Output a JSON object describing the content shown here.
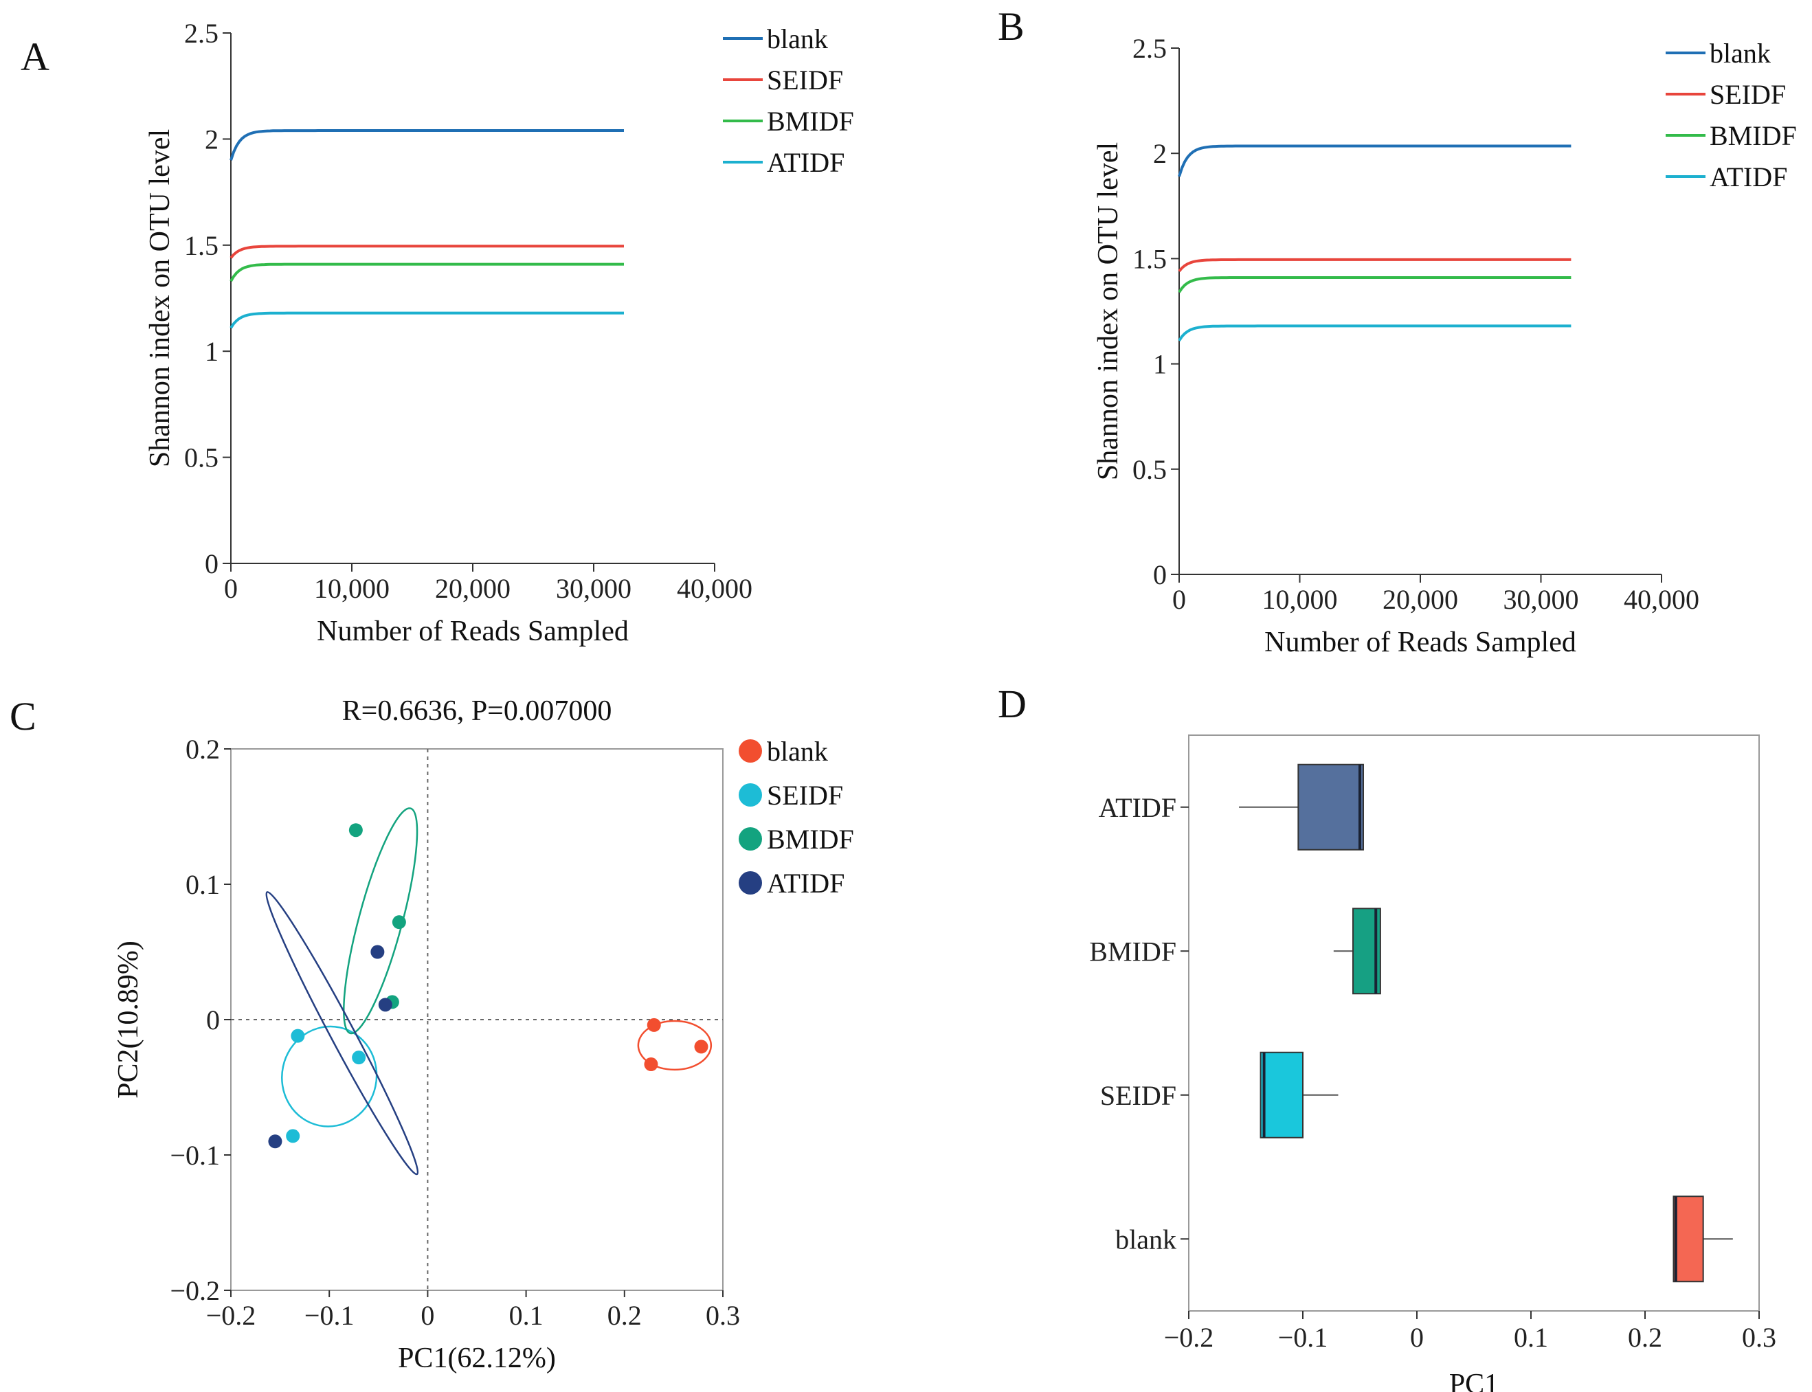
{
  "chart_data": [
    {
      "panel": "A",
      "type": "line",
      "title": "",
      "xlabel": "Number of Reads Sampled",
      "ylabel": "Shannon index on OTU level",
      "xlim": [
        0,
        40000
      ],
      "ylim": [
        0,
        2.5
      ],
      "xticks": [
        0,
        10000,
        20000,
        30000,
        40000
      ],
      "xtick_labels": [
        "0",
        "10,000",
        "20,000",
        "30,000",
        "40,000"
      ],
      "yticks": [
        0,
        0.5,
        1,
        1.5,
        2,
        2.5
      ],
      "ytick_labels": [
        "0",
        "0.5",
        "1",
        "1.5",
        "2",
        "2.5"
      ],
      "x_end": 32500,
      "legend": "top-right",
      "series": [
        {
          "name": "blank",
          "color": "#1f6fb4",
          "start": 1.9,
          "plateau": 2.04
        },
        {
          "name": "SEIDF",
          "color": "#e8453c",
          "start": 1.44,
          "plateau": 1.495
        },
        {
          "name": "BMIDF",
          "color": "#33bb4a",
          "start": 1.33,
          "plateau": 1.41
        },
        {
          "name": "ATIDF",
          "color": "#1cb0cf",
          "start": 1.11,
          "plateau": 1.18
        }
      ]
    },
    {
      "panel": "B",
      "type": "line",
      "title": "",
      "xlabel": "Number of Reads Sampled",
      "ylabel": "Shannon index on OTU level",
      "xlim": [
        0,
        40000
      ],
      "ylim": [
        0,
        2.5
      ],
      "xticks": [
        0,
        10000,
        20000,
        30000,
        40000
      ],
      "xtick_labels": [
        "0",
        "10,000",
        "20,000",
        "30,000",
        "40,000"
      ],
      "yticks": [
        0,
        0.5,
        1,
        1.5,
        2,
        2.5
      ],
      "ytick_labels": [
        "0",
        "0.5",
        "1",
        "1.5",
        "2",
        "2.5"
      ],
      "x_end": 32500,
      "legend": "top-right",
      "series": [
        {
          "name": "blank",
          "color": "#1f6fb4",
          "start": 1.89,
          "plateau": 2.035
        },
        {
          "name": "SEIDF",
          "color": "#e8453c",
          "start": 1.44,
          "plateau": 1.495
        },
        {
          "name": "BMIDF",
          "color": "#33bb4a",
          "start": 1.34,
          "plateau": 1.41
        },
        {
          "name": "ATIDF",
          "color": "#1cb0cf",
          "start": 1.11,
          "plateau": 1.18
        }
      ]
    },
    {
      "panel": "C",
      "type": "scatter",
      "title": "R=0.6636, P=0.007000",
      "xlabel": "PC1(62.12%)",
      "ylabel": "PC2(10.89%)",
      "xlim": [
        -0.2,
        0.3
      ],
      "ylim": [
        -0.2,
        0.2
      ],
      "xticks": [
        -0.2,
        -0.1,
        0,
        0.1,
        0.2,
        0.3
      ],
      "xtick_labels": [
        "−0.2",
        "−0.1",
        "0",
        "0.1",
        "0.2",
        "0.3"
      ],
      "yticks": [
        -0.2,
        -0.1,
        0,
        0.1,
        0.2
      ],
      "ytick_labels": [
        "−0.2",
        "−0.1",
        "0",
        "0.1",
        "0.2"
      ],
      "legend": "top-right",
      "series": [
        {
          "name": "blank",
          "color": "#f24e2f",
          "points": [
            [
              0.23,
              -0.004
            ],
            [
              0.278,
              -0.02
            ],
            [
              0.227,
              -0.033
            ]
          ],
          "ellipse": {
            "cx": 0.251,
            "cy": -0.019,
            "rx": 0.037,
            "ry": 0.018,
            "angle": 0
          }
        },
        {
          "name": "SEIDF",
          "color": "#1dbcd6",
          "points": [
            [
              -0.132,
              -0.012
            ],
            [
              -0.07,
              -0.028
            ],
            [
              -0.137,
              -0.086
            ]
          ],
          "ellipse": {
            "cx": -0.1,
            "cy": -0.042,
            "rx": 0.048,
            "ry": 0.037,
            "angle": 12
          }
        },
        {
          "name": "BMIDF",
          "color": "#13a37f",
          "points": [
            [
              -0.073,
              0.14
            ],
            [
              -0.029,
              0.072
            ],
            [
              -0.036,
              0.013
            ]
          ],
          "ellipse": {
            "cx": -0.048,
            "cy": 0.073,
            "rx": 0.022,
            "ry": 0.086,
            "angle": 15
          }
        },
        {
          "name": "ATIDF",
          "color": "#253f82",
          "points": [
            [
              -0.051,
              0.05
            ],
            [
              -0.043,
              0.011
            ],
            [
              -0.155,
              -0.09
            ]
          ],
          "ellipse": {
            "cx": -0.087,
            "cy": -0.01,
            "rx": 0.012,
            "ry": 0.118,
            "angle": -28
          }
        }
      ]
    },
    {
      "panel": "D",
      "type": "box",
      "title": "",
      "xlabel": "PC1",
      "ylabel": "",
      "xlim": [
        -0.2,
        0.3
      ],
      "xticks": [
        -0.2,
        -0.1,
        0,
        0.1,
        0.2,
        0.3
      ],
      "xtick_labels": [
        "−0.2",
        "−0.1",
        "0",
        "0.1",
        "0.2",
        "0.3"
      ],
      "categories": [
        "ATIDF",
        "BMIDF",
        "SEIDF",
        "blank"
      ],
      "boxes": [
        {
          "name": "ATIDF",
          "color": "#55709d",
          "whisker_low": -0.156,
          "q1": -0.104,
          "median": -0.05,
          "q3": -0.047,
          "whisker_high": -0.047
        },
        {
          "name": "BMIDF",
          "color": "#16a083",
          "whisker_low": -0.073,
          "q1": -0.056,
          "median": -0.036,
          "q3": -0.032,
          "whisker_high": -0.032
        },
        {
          "name": "SEIDF",
          "color": "#1ac7dc",
          "whisker_low": -0.137,
          "q1": -0.137,
          "median": -0.134,
          "q3": -0.1,
          "whisker_high": -0.069
        },
        {
          "name": "blank",
          "color": "#f46753",
          "whisker_low": 0.225,
          "q1": 0.225,
          "median": 0.227,
          "q3": 0.251,
          "whisker_high": 0.277
        }
      ]
    }
  ]
}
